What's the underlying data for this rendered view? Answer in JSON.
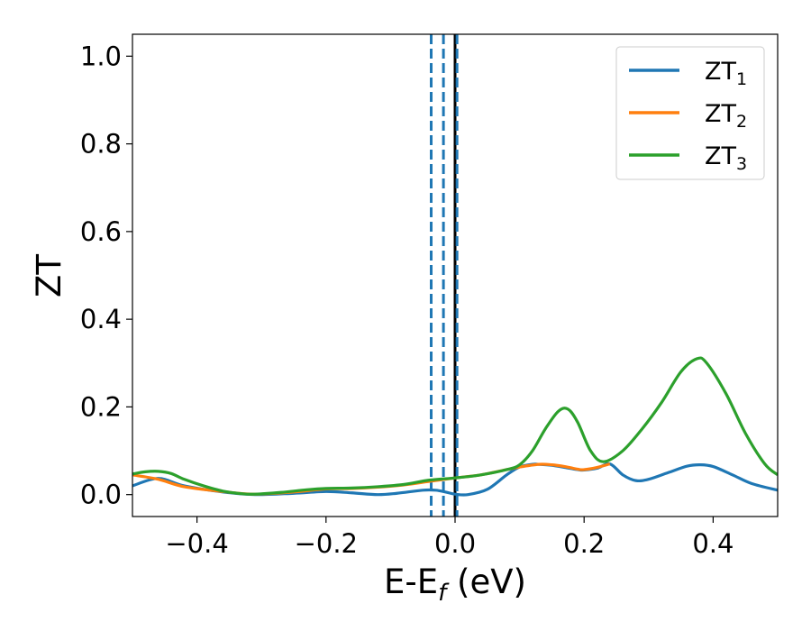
{
  "chart_data": {
    "type": "line",
    "xlabel": "E-E",
    "xlabel_sub": "f",
    "xlabel_unit": " (eV)",
    "ylabel": "ZT",
    "xlim": [
      -0.5,
      0.5
    ],
    "ylim": [
      -0.05,
      1.05
    ],
    "xticks": [
      -0.4,
      -0.2,
      0.0,
      0.2,
      0.4
    ],
    "xtick_labels": [
      "−0.4",
      "−0.2",
      "0.0",
      "0.2",
      "0.4"
    ],
    "yticks": [
      0.0,
      0.2,
      0.4,
      0.6,
      0.8,
      1.0
    ],
    "ytick_labels": [
      "0.0",
      "0.2",
      "0.4",
      "0.6",
      "0.8",
      "1.0"
    ],
    "grid": false,
    "legend_position": "top-right",
    "vlines": [
      {
        "x": 0.0,
        "style": "solid",
        "color": "#000000"
      },
      {
        "x": -0.037,
        "style": "dashed",
        "color": "#1f77b4"
      },
      {
        "x": -0.018,
        "style": "dashed",
        "color": "#1f77b4"
      },
      {
        "x": 0.003,
        "style": "dashed",
        "color": "#1f77b4"
      }
    ],
    "series": [
      {
        "name": "ZT",
        "sub": "1",
        "color": "#1f77b4",
        "x": [
          -0.5,
          -0.46,
          -0.42,
          -0.36,
          -0.31,
          -0.25,
          -0.2,
          -0.16,
          -0.12,
          -0.09,
          -0.05,
          -0.03,
          -0.015,
          0.0,
          0.02,
          0.05,
          0.08,
          0.1,
          0.12,
          0.13,
          0.15,
          0.17,
          0.19,
          0.2,
          0.22,
          0.24,
          0.26,
          0.28,
          0.3,
          0.33,
          0.36,
          0.38,
          0.4,
          0.43,
          0.46,
          0.5
        ],
        "y": [
          0.02,
          0.037,
          0.02,
          0.006,
          0.0,
          0.003,
          0.007,
          0.004,
          0.0,
          0.003,
          0.01,
          0.01,
          0.006,
          0.001,
          0.0,
          0.012,
          0.045,
          0.063,
          0.069,
          0.069,
          0.067,
          0.062,
          0.057,
          0.056,
          0.06,
          0.07,
          0.045,
          0.032,
          0.035,
          0.05,
          0.065,
          0.068,
          0.064,
          0.045,
          0.025,
          0.01
        ]
      },
      {
        "name": "ZT",
        "sub": "2",
        "color": "#ff7f0e",
        "x": [
          -0.5,
          -0.46,
          -0.42,
          -0.36,
          -0.31,
          -0.25,
          -0.2,
          -0.16,
          -0.12,
          -0.08,
          -0.04,
          0.0,
          0.04,
          0.08,
          0.1,
          0.13,
          0.15,
          0.17,
          0.19,
          0.2,
          0.22,
          0.24
        ],
        "y": [
          0.045,
          0.035,
          0.018,
          0.007,
          0.001,
          0.006,
          0.013,
          0.014,
          0.017,
          0.022,
          0.03,
          0.038,
          0.045,
          0.057,
          0.063,
          0.069,
          0.068,
          0.064,
          0.058,
          0.057,
          0.062,
          0.07
        ]
      },
      {
        "name": "ZT",
        "sub": "3",
        "color": "#2ca02c",
        "x": [
          -0.5,
          -0.48,
          -0.46,
          -0.44,
          -0.42,
          -0.39,
          -0.36,
          -0.33,
          -0.31,
          -0.27,
          -0.23,
          -0.2,
          -0.16,
          -0.12,
          -0.08,
          -0.04,
          0.0,
          0.04,
          0.08,
          0.1,
          0.12,
          0.14,
          0.16,
          0.175,
          0.19,
          0.21,
          0.23,
          0.26,
          0.29,
          0.32,
          0.35,
          0.375,
          0.39,
          0.42,
          0.45,
          0.48,
          0.5
        ],
        "y": [
          0.047,
          0.052,
          0.053,
          0.048,
          0.035,
          0.02,
          0.008,
          0.002,
          0.001,
          0.005,
          0.011,
          0.014,
          0.015,
          0.018,
          0.023,
          0.033,
          0.038,
          0.045,
          0.057,
          0.068,
          0.1,
          0.15,
          0.19,
          0.195,
          0.165,
          0.1,
          0.075,
          0.1,
          0.15,
          0.21,
          0.28,
          0.31,
          0.3,
          0.23,
          0.14,
          0.07,
          0.045
        ]
      }
    ]
  }
}
